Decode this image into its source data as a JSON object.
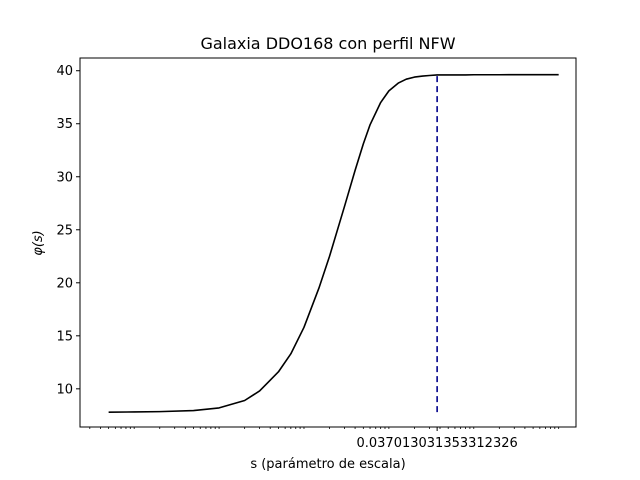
{
  "chart_data": {
    "type": "line",
    "title": "Galaxia DDO168 con perfil NFW",
    "xlabel": "s (parámetro de escala)",
    "ylabel": "φ(s)",
    "x_scale": "log",
    "xlim": [
      2.3e-06,
      1.6
    ],
    "ylim": [
      6.4,
      41.2
    ],
    "y_ticks": [
      10,
      15,
      20,
      25,
      30,
      35,
      40
    ],
    "x_tick_label": "0.037013031353312326",
    "x_tick_value": 0.037013031353312326,
    "grid": false,
    "series": [
      {
        "color": "#000000",
        "style": "solid",
        "x": [
          5e-06,
          1e-05,
          2e-05,
          5e-05,
          0.0001,
          0.0002,
          0.0003,
          0.0005,
          0.0007,
          0.001,
          0.0015,
          0.002,
          0.003,
          0.004,
          0.005,
          0.006,
          0.008,
          0.01,
          0.013,
          0.016,
          0.02,
          0.025,
          0.03,
          0.037,
          0.045,
          0.06,
          0.08,
          0.1,
          0.2,
          0.5,
          1.0
        ],
        "y": [
          7.8,
          7.82,
          7.85,
          7.95,
          8.2,
          8.9,
          9.8,
          11.6,
          13.3,
          15.8,
          19.5,
          22.5,
          27.2,
          30.6,
          33.1,
          34.9,
          37.0,
          38.1,
          38.85,
          39.2,
          39.4,
          39.5,
          39.55,
          39.6,
          39.6,
          39.6,
          39.6,
          39.62,
          39.62,
          39.63,
          39.63
        ]
      }
    ],
    "vline": {
      "x": 0.037013031353312326,
      "y_range": [
        7.8,
        39.8
      ],
      "color": "#00008b",
      "style": "dashed"
    }
  }
}
